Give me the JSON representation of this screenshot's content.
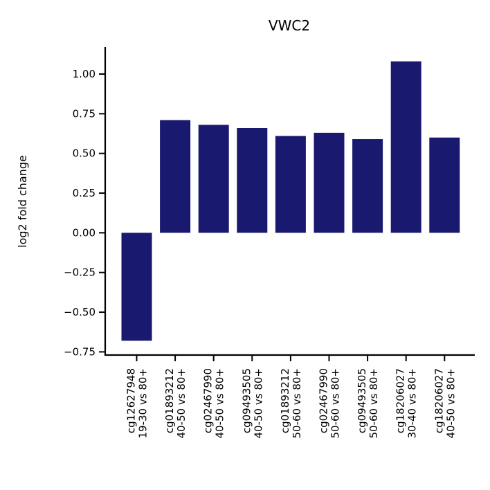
{
  "chart_data": {
    "type": "bar",
    "title": "VWC2",
    "xlabel": "",
    "ylabel": "log2 fold change",
    "categories": [
      [
        "cg12627948",
        "19-30 vs 80+"
      ],
      [
        "cg01893212",
        "40-50 vs 80+"
      ],
      [
        "cg02467990",
        "40-50 vs 80+"
      ],
      [
        "cg09493505",
        "40-50 vs 80+"
      ],
      [
        "cg01893212",
        "50-60 vs 80+"
      ],
      [
        "cg02467990",
        "50-60 vs 80+"
      ],
      [
        "cg09493505",
        "50-60 vs 80+"
      ],
      [
        "cg18206027",
        "30-40 vs 80+"
      ],
      [
        "cg18206027",
        "40-50 vs 80+"
      ]
    ],
    "values": [
      -0.68,
      0.71,
      0.68,
      0.66,
      0.61,
      0.63,
      0.59,
      1.08,
      0.6
    ],
    "yticks": [
      -0.75,
      -0.5,
      -0.25,
      0.0,
      0.25,
      0.5,
      0.75,
      1.0
    ],
    "ytick_labels": [
      "−0.75",
      "−0.50",
      "−0.25",
      "0.00",
      "0.25",
      "0.50",
      "0.75",
      "1.00"
    ],
    "ylim": [
      -0.77,
      1.17
    ],
    "bar_color": "#191970",
    "grid": false,
    "legend": "none"
  }
}
